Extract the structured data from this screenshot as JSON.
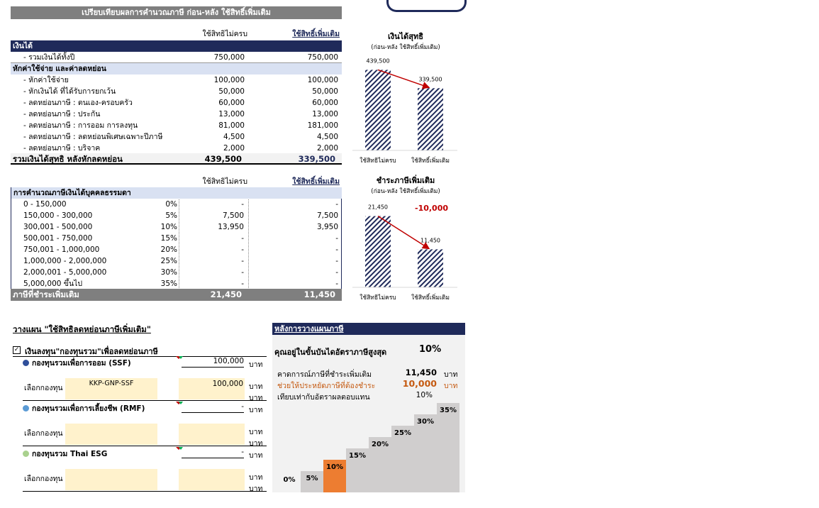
{
  "title_bar": "เปรียบเทียบผลการคำนวณภาษี ก่อน-หลัง ใช้สิทธิ์เพิ่มเติม",
  "income_table": {
    "col_before": "ใช้สิทธิไม่ครบ",
    "col_after": "ใช้สิทธิ์เพิ่มเติม",
    "income_header": "เงินได้",
    "income_total_label": "- รวมเงินได้ทั้งปี",
    "income_total_before": "750,000",
    "income_total_after": "750,000",
    "deduct_header": "หักค่าใช้จ่าย และค่าลดหย่อน",
    "rows": [
      {
        "label": "- หักค่าใช้จ่าย",
        "before": "100,000",
        "after": "100,000"
      },
      {
        "label": "- หักเงินได้ ที่ได้รับการยกเว้น",
        "before": "50,000",
        "after": "50,000"
      },
      {
        "label": "- ลดหย่อนภาษี : ตนเอง-ครอบครัว",
        "before": "60,000",
        "after": "60,000"
      },
      {
        "label": "- ลดหย่อนภาษี : ประกัน",
        "before": "13,000",
        "after": "13,000"
      },
      {
        "label": "- ลดหย่อนภาษี : การออม การลงทุน",
        "before": "81,000",
        "after": "181,000"
      },
      {
        "label": "- ลดหย่อนภาษี : ลดหย่อนพิเศษเฉพาะปีภาษี",
        "before": "4,500",
        "after": "4,500"
      },
      {
        "label": "- ลดหย่อนภาษี : บริจาค",
        "before": "2,000",
        "after": "2,000"
      }
    ],
    "net_label": "รวมเงินได้สุทธิ หลังหักลดหย่อน",
    "net_before": "439,500",
    "net_after": "339,500"
  },
  "tax_table": {
    "col_before": "ใช้สิทธิไม่ครบ",
    "col_after": "ใช้สิทธิ์เพิ่มเติม",
    "header": "การคำนวณภาษีเงินได้บุคคลธรรมดา",
    "rows": [
      {
        "bracket": "0 - 150,000",
        "rate": "0%",
        "before": "-",
        "after": "-"
      },
      {
        "bracket": "150,000 - 300,000",
        "rate": "5%",
        "before": "7,500",
        "after": "7,500"
      },
      {
        "bracket": "300,001 - 500,000",
        "rate": "10%",
        "before": "13,950",
        "after": "3,950"
      },
      {
        "bracket": "500,001 - 750,000",
        "rate": "15%",
        "before": "-",
        "after": "-"
      },
      {
        "bracket": "750,001 - 1,000,000",
        "rate": "20%",
        "before": "-",
        "after": "-"
      },
      {
        "bracket": "1,000,000 - 2,000,000",
        "rate": "25%",
        "before": "-",
        "after": "-"
      },
      {
        "bracket": "2,000,001 - 5,000,000",
        "rate": "30%",
        "before": "-",
        "after": "-"
      },
      {
        "bracket": "5,000,000 ขึ้นไป",
        "rate": "35%",
        "before": "-",
        "after": "-"
      }
    ],
    "total_label": "ภาษีที่ชำระเพิ่มเติม",
    "total_before": "21,450",
    "total_after": "11,450"
  },
  "net_chart": {
    "title": "เงินได้สุทธิ",
    "subtitle": "(ก่อน-หลัง ใช้สิทธิ์เพิ่มเติม)",
    "categories": [
      "ใช้สิทธิไม่ครบ",
      "ใช้สิทธิ์เพิ่มเติม"
    ],
    "values": [
      439500,
      339500
    ],
    "labels": [
      "439,500",
      "339,500"
    ],
    "ymax": 480000
  },
  "tax_chart": {
    "title": "ชำระภาษีเพิ่มเติม",
    "subtitle": "(ก่อน-หลัง ใช้สิทธิ์เพิ่มเติม)",
    "diff": "-10,000",
    "categories": [
      "ใช้สิทธิไม่ครบ",
      "ใช้สิทธิ์เพิ่มเติม"
    ],
    "values": [
      21450,
      11450
    ],
    "labels": [
      "21,450",
      "11,450"
    ],
    "ymax": 23500
  },
  "plan": {
    "title": "วางแผน \"ใช้สิทธิลดหย่อนภาษีเพิ่มเติม\"",
    "checkbox_label": "เงินลงทุน\"กองทุนรวม\"เพื่อลดหย่อนภาษี",
    "baht": "บาท",
    "select_label": "เลือกกองทุน",
    "select_label_colon": "เลือกกองทุน :",
    "funds": [
      {
        "name": "กองทุนรวมเพื่อการออม (SSF)",
        "amount": "100,000",
        "fund": "KKP-GNP-SSF",
        "fund_amount": "100,000",
        "color": "#2f4f9a"
      },
      {
        "name": "กองทุนรวมเพื่อการเลี้ยงชีพ (RMF)",
        "amount": "-",
        "fund": "",
        "fund_amount": "",
        "color": "#5b9bd5"
      },
      {
        "name": "กองทุนรวม Thai ESG",
        "amount": "-",
        "fund": "",
        "fund_amount": "",
        "color": "#a9d18e"
      }
    ]
  },
  "after_plan": {
    "header": "หลังการวางแผนภาษี",
    "bracket_label": "คุณอยู่ในขั้นบันไดอัตราภาษีสูงสุด",
    "bracket_value": "10%",
    "expected_label": "คาดการณ์ภาษีที่ชำระเพิ่มเติม",
    "expected_value": "11,450",
    "saved_label": "ช่วยให้ประหยัดภาษีที่ต้องชำระ",
    "saved_value": "10,000",
    "equiv_label": "เทียบเท่ากับอัตราผลตอบแทน",
    "equiv_value": "10%",
    "baht": "บาท",
    "steps": [
      "0%",
      "5%",
      "10%",
      "15%",
      "20%",
      "25%",
      "30%",
      "35%"
    ],
    "active_index": 2,
    "active_color": "#ed7d31",
    "step_color": "#d0cece"
  }
}
